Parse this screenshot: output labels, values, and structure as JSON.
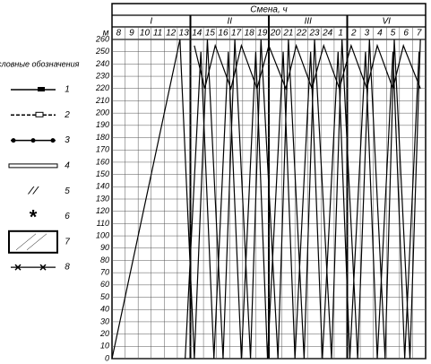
{
  "chart_data": {
    "type": "line",
    "header": "Смена, ч",
    "y_unit": "м",
    "shifts": [
      "I",
      "II",
      "III",
      "VI"
    ],
    "categories": [
      "8",
      "9",
      "10",
      "11",
      "12",
      "13",
      "14",
      "15",
      "16",
      "17",
      "18",
      "19",
      "20",
      "21",
      "22",
      "23",
      "24",
      "1",
      "2",
      "3",
      "4",
      "5",
      "6",
      "7"
    ],
    "xlim": [
      0,
      24
    ],
    "ylim": [
      0,
      260
    ],
    "yticks": [
      0,
      10,
      20,
      30,
      40,
      50,
      60,
      70,
      80,
      90,
      100,
      110,
      120,
      130,
      140,
      150,
      160,
      170,
      180,
      190,
      200,
      210,
      220,
      230,
      240,
      250,
      260
    ],
    "grid": true,
    "legend_title": "Условные обозначения",
    "legend": [
      "1",
      "2",
      "3",
      "4",
      "5",
      "6",
      "7",
      "8"
    ],
    "series": [
      {
        "color": "#000",
        "x": [
          0,
          5.2
        ],
        "values": [
          0,
          260
        ]
      },
      {
        "color": "#000",
        "x": [
          5.2,
          6.3,
          7.3,
          8.5,
          9.4,
          10.6,
          11.4,
          12.7,
          13.5,
          14.7,
          15.5,
          16.8,
          17.6,
          18.8,
          19.7,
          20.9,
          21.6,
          22.8,
          23.6
        ],
        "values": [
          260,
          0,
          260,
          0,
          260,
          0,
          260,
          0,
          260,
          0,
          260,
          0,
          260,
          0,
          260,
          0,
          260,
          0,
          260
        ]
      },
      {
        "color": "#000",
        "x": [
          5.6,
          6.8,
          7.8,
          8.9,
          9.9,
          11.0,
          11.9,
          13.1,
          14.0,
          15.2,
          16.1,
          17.3,
          18.2,
          19.4,
          20.3,
          21.5,
          22.4,
          23.5
        ],
        "values": [
          0,
          250,
          0,
          250,
          0,
          250,
          0,
          250,
          0,
          250,
          0,
          250,
          0,
          250,
          0,
          250,
          0,
          250
        ]
      },
      {
        "color": "#000",
        "x": [
          6.3,
          7.1,
          7.9,
          9.1,
          9.9,
          11.1,
          12.0,
          13.3,
          14.1,
          15.3,
          16.2,
          17.4,
          18.3,
          19.5,
          20.3,
          21.5,
          22.3,
          23.6
        ],
        "values": [
          255,
          220,
          255,
          220,
          255,
          220,
          255,
          220,
          255,
          220,
          255,
          220,
          255,
          220,
          255,
          220,
          255,
          220
        ]
      }
    ]
  }
}
